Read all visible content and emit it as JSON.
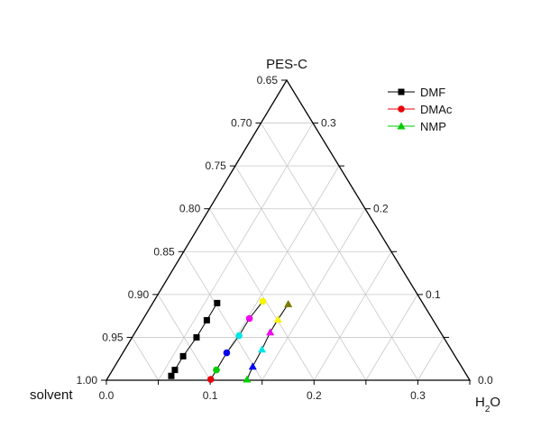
{
  "chart_data": {
    "type": "scatter",
    "subtype": "ternary",
    "vertices": {
      "top": "PES-C",
      "left": "solvent",
      "right": "H2O"
    },
    "left_axis": {
      "component": "PES-C",
      "range": [
        0.65,
        1.0
      ],
      "ticks": [
        "0.65",
        "0.70",
        "0.75",
        "0.80",
        "0.85",
        "0.90",
        "0.95",
        "1.00"
      ]
    },
    "right_axis": {
      "component": "PES-C",
      "range": [
        0.0,
        0.35
      ],
      "ticks": [
        "0.3",
        "0.2",
        "0.1",
        "0.0"
      ]
    },
    "bottom_axis": {
      "component": "H2O",
      "range": [
        0.0,
        0.35
      ],
      "ticks": [
        "0.0",
        "0.1",
        "0.2",
        "0.3"
      ]
    },
    "grid": true,
    "legend_position": "top-right",
    "legend": [
      {
        "label": "DMF",
        "marker": "square",
        "color": "#000000"
      },
      {
        "label": "DMAc",
        "marker": "circle",
        "color": "#e8000b"
      },
      {
        "label": "NMP",
        "marker": "triangle",
        "color": "#00cc00"
      }
    ],
    "series": [
      {
        "line_color": "#000000",
        "points": [
          {
            "h2o": 0.06,
            "pes": 0.005,
            "color": "#000000",
            "marker": "square"
          },
          {
            "h2o": 0.06,
            "pes": 0.012,
            "color": "#000000",
            "marker": "square"
          },
          {
            "h2o": 0.06,
            "pes": 0.028,
            "color": "#000000",
            "marker": "square"
          },
          {
            "h2o": 0.062,
            "pes": 0.05,
            "color": "#000000",
            "marker": "square"
          },
          {
            "h2o": 0.062,
            "pes": 0.07,
            "color": "#000000",
            "marker": "square"
          },
          {
            "h2o": 0.062,
            "pes": 0.09,
            "color": "#000000",
            "marker": "square"
          }
        ]
      },
      {
        "line_color": "#000000",
        "points": [
          {
            "h2o": 0.1,
            "pes": 0.001,
            "color": "#e8000b",
            "marker": "circle"
          },
          {
            "h2o": 0.1,
            "pes": 0.012,
            "color": "#00cc00",
            "marker": "circle"
          },
          {
            "h2o": 0.1,
            "pes": 0.032,
            "color": "#0000ee",
            "marker": "circle"
          },
          {
            "h2o": 0.102,
            "pes": 0.052,
            "color": "#00e5e5",
            "marker": "circle"
          },
          {
            "h2o": 0.102,
            "pes": 0.072,
            "color": "#ee00ee",
            "marker": "circle"
          },
          {
            "h2o": 0.105,
            "pes": 0.092,
            "color": "#f5f500",
            "marker": "circle"
          }
        ]
      },
      {
        "line_color": "#000000",
        "points": [
          {
            "h2o": 0.135,
            "pes": 0.001,
            "color": "#00cc00",
            "marker": "triangle"
          },
          {
            "h2o": 0.133,
            "pes": 0.016,
            "color": "#0000ee",
            "marker": "triangle"
          },
          {
            "h2o": 0.132,
            "pes": 0.036,
            "color": "#00e5e5",
            "marker": "triangle"
          },
          {
            "h2o": 0.13,
            "pes": 0.056,
            "color": "#ee00ee",
            "marker": "triangle"
          },
          {
            "h2o": 0.13,
            "pes": 0.071,
            "color": "#f5f500",
            "marker": "triangle"
          },
          {
            "h2o": 0.131,
            "pes": 0.089,
            "color": "#7a7a00",
            "marker": "triangle"
          }
        ]
      }
    ]
  }
}
